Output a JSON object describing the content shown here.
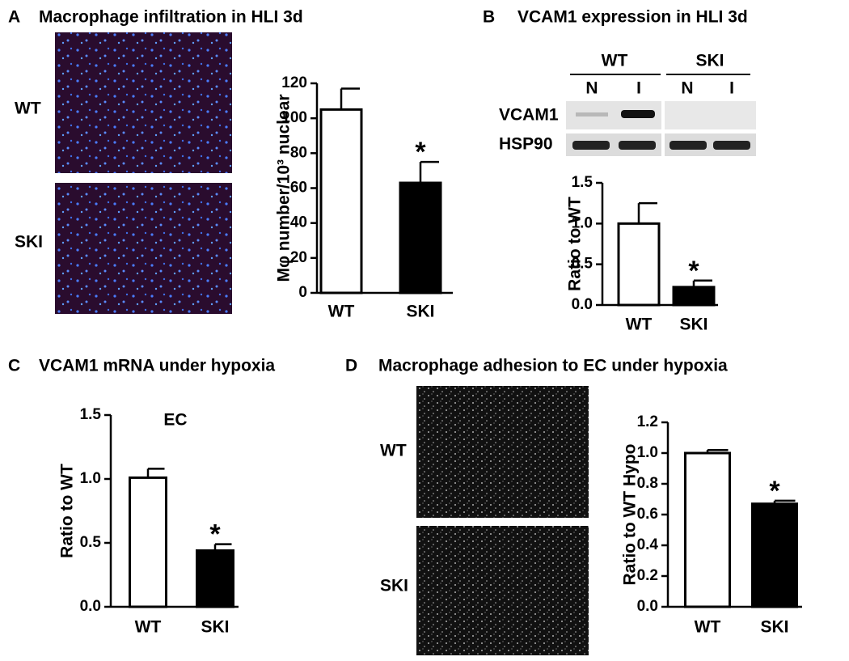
{
  "chart_data": [
    {
      "type": "bar",
      "panel_label": "A",
      "title": "Macrophage infiltration in HLI 3d",
      "image_labels": [
        "WT",
        "SKI"
      ],
      "ylabel": "Mφ number/10³ nuclear",
      "categories": [
        "WT",
        "SKI"
      ],
      "values": [
        105,
        63
      ],
      "errors": [
        12,
        12
      ],
      "colors": [
        "#ffffff",
        "#000000"
      ],
      "significance": [
        null,
        "*"
      ],
      "ylim": [
        0,
        120
      ],
      "yticks": [
        0,
        20,
        40,
        60,
        80,
        100,
        120
      ]
    },
    {
      "type": "bar",
      "panel_label": "B",
      "title": "VCAM1 expression in HLI 3d",
      "blot": {
        "groups": [
          "WT",
          "SKI"
        ],
        "lanes": [
          "N",
          "I",
          "N",
          "I"
        ],
        "rows": [
          "VCAM1",
          "HSP90"
        ]
      },
      "ylabel": "Ratio to WT",
      "categories": [
        "WT",
        "SKI"
      ],
      "values": [
        1.0,
        0.22
      ],
      "errors": [
        0.25,
        0.08
      ],
      "colors": [
        "#ffffff",
        "#000000"
      ],
      "significance": [
        null,
        "*"
      ],
      "ylim": [
        0,
        1.5
      ],
      "yticks": [
        {
          "value": 0,
          "label": "0.0"
        },
        0.5,
        {
          "value": 1,
          "label": "1.0"
        },
        1.5
      ]
    },
    {
      "type": "bar",
      "panel_label": "C",
      "title": "VCAM1 mRNA under hypoxia",
      "annotation": "EC",
      "ylabel": "Ratio to WT",
      "categories": [
        "WT",
        "SKI"
      ],
      "values": [
        1.01,
        0.44
      ],
      "errors": [
        0.07,
        0.05
      ],
      "colors": [
        "#ffffff",
        "#000000"
      ],
      "significance": [
        null,
        "*"
      ],
      "ylim": [
        0,
        1.5
      ],
      "yticks": [
        {
          "value": 0,
          "label": "0.0"
        },
        0.5,
        {
          "value": 1,
          "label": "1.0"
        },
        1.5
      ]
    },
    {
      "type": "bar",
      "panel_label": "D",
      "title": "Macrophage adhesion  to EC under hypoxia",
      "image_labels": [
        "WT",
        "SKI"
      ],
      "ylabel": "Ratio to WT Hypo",
      "categories": [
        "WT",
        "SKI"
      ],
      "values": [
        1.0,
        0.67
      ],
      "errors": [
        0.02,
        0.02
      ],
      "colors": [
        "#ffffff",
        "#000000"
      ],
      "significance": [
        null,
        "*"
      ],
      "ylim": [
        0,
        1.2
      ],
      "yticks": [
        {
          "value": 0,
          "label": "0.0"
        },
        0.2,
        0.4,
        0.6,
        0.8,
        {
          "value": 1,
          "label": "1.0"
        },
        1.2
      ]
    }
  ]
}
